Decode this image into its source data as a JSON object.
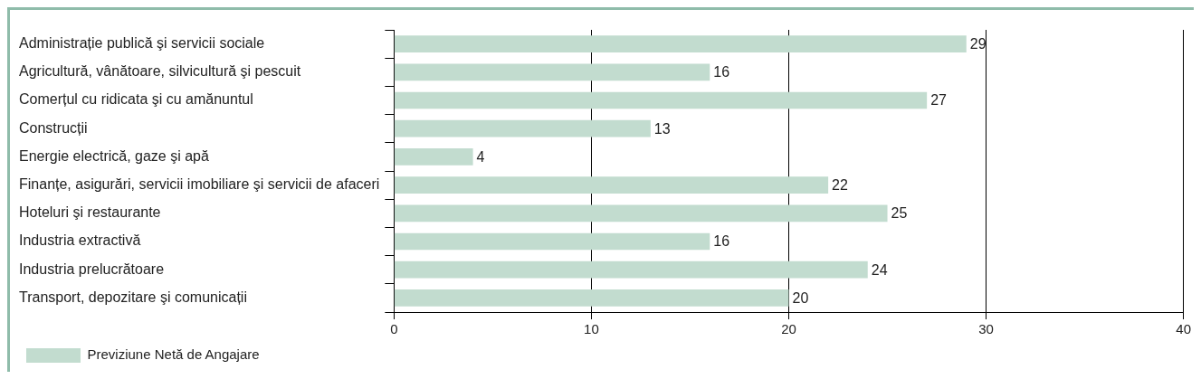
{
  "chart_data": {
    "type": "bar",
    "orientation": "horizontal",
    "categories": [
      "Administrație publică şi servicii sociale",
      "Agricultură, vânătoare, silvicultură şi pescuit",
      "Comerțul cu ridicata şi cu amănuntul",
      "Construcții",
      "Energie electrică, gaze şi apă",
      "Finanțe, asigurări, servicii imobiliare şi servicii de afaceri",
      "Hoteluri şi restaurante",
      "Industria extractivă",
      "Industria prelucrătoare",
      "Transport, depozitare şi comunicații"
    ],
    "series": [
      {
        "name": "Previziune Netă de Angajare",
        "color": "#c2dccf",
        "values": [
          29,
          16,
          27,
          13,
          4,
          22,
          25,
          16,
          24,
          20
        ]
      }
    ],
    "xlim": [
      0,
      40
    ],
    "xticks": [
      0,
      10,
      20,
      30,
      40
    ],
    "grid": "x",
    "legend": "bottom left",
    "data_labels": true
  }
}
